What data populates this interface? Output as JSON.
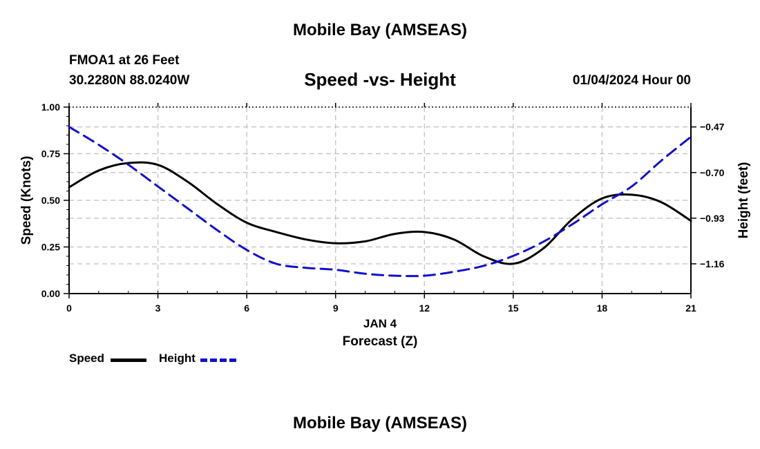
{
  "header": {
    "title": "Mobile Bay (AMSEAS)",
    "station": "FMOA1 at 26 Feet",
    "coords": "30.2280N  88.0240W",
    "subtitle": "Speed -vs- Height",
    "datetime": "01/04/2024 Hour 00"
  },
  "footer": {
    "title": "Mobile Bay (AMSEAS)"
  },
  "colors": {
    "speed": "#000000",
    "height": "#1010cc",
    "grid": "#bdbdbd"
  },
  "chart_data": {
    "type": "line",
    "title": "Speed -vs- Height",
    "xlabel": "Forecast (Z)",
    "xlabel_date": "JAN 4",
    "ylabel": "Speed (Knots)",
    "y2label": "Height (feet)",
    "xlim": [
      0,
      21
    ],
    "ylim": [
      0,
      1.0
    ],
    "y2lim": [
      -1.31,
      -0.37
    ],
    "x_ticks": [
      0,
      3,
      6,
      9,
      12,
      15,
      18,
      21
    ],
    "x_tick_labels": [
      "0",
      "3",
      "6",
      "9",
      "12",
      "15",
      "18",
      "21"
    ],
    "y_ticks": [
      0,
      0.25,
      0.5,
      0.75,
      1.0
    ],
    "y_tick_labels": [
      "0.00",
      "0.25",
      "0.50",
      "0.75",
      "1.00"
    ],
    "y2_ticks": [
      -1.16,
      -0.93,
      -0.7,
      -0.47
    ],
    "y2_tick_labels": [
      "-1.16",
      "-0.93",
      "-0.70",
      "-0.47"
    ],
    "grid": true,
    "legend_position": "bottom-left",
    "series": [
      {
        "name": "Speed",
        "axis": "left",
        "style": "solid",
        "x": [
          0,
          1,
          2,
          3,
          4,
          5,
          6,
          7,
          8,
          9,
          10,
          11,
          12,
          13,
          14,
          15,
          16,
          17,
          18,
          19,
          20,
          21
        ],
        "values": [
          0.57,
          0.66,
          0.7,
          0.69,
          0.6,
          0.48,
          0.38,
          0.33,
          0.29,
          0.27,
          0.28,
          0.32,
          0.33,
          0.29,
          0.2,
          0.16,
          0.24,
          0.4,
          0.51,
          0.53,
          0.49,
          0.39
        ]
      },
      {
        "name": "Height",
        "axis": "right",
        "style": "dashed",
        "x": [
          0,
          1,
          2,
          3,
          4,
          5,
          6,
          7,
          8,
          9,
          10,
          11,
          12,
          13,
          14,
          15,
          16,
          17,
          18,
          19,
          20,
          21
        ],
        "values": [
          -0.47,
          -0.56,
          -0.66,
          -0.77,
          -0.88,
          -0.99,
          -1.09,
          -1.16,
          -1.18,
          -1.19,
          -1.21,
          -1.22,
          -1.22,
          -1.2,
          -1.17,
          -1.12,
          -1.05,
          -0.96,
          -0.86,
          -0.77,
          -0.64,
          -0.52
        ]
      }
    ]
  },
  "legend": {
    "speed_label": "Speed",
    "height_label": "Height"
  }
}
